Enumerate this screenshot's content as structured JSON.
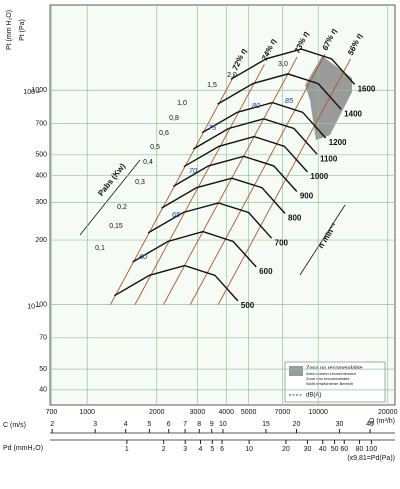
{
  "chart_data": {
    "type": "line",
    "x_label": "Q (m³/h)",
    "y_label": "Pt (Pa)",
    "y2_label": "Pt (mm H₂O)",
    "log_x": true,
    "log_y": true,
    "grid": true,
    "grid_color": "#8cc79a",
    "xlim": [
      690,
      21500
    ],
    "ylim": [
      34,
      2500
    ],
    "y2lim": [
      3.47,
      255
    ],
    "xticks": [
      700,
      1000,
      2000,
      3000,
      4000,
      5000,
      7000,
      10000,
      20000
    ],
    "yticks": [
      40,
      50,
      70,
      100,
      200,
      300,
      400,
      500,
      700,
      1000
    ],
    "y2ticks": [
      10,
      100
    ],
    "speed_axis_label": "n  min⁻¹",
    "speed_curves": [
      {
        "name": "500",
        "color": "#111111",
        "x": [
          1310,
          1860,
          2640,
          3570,
          4490
        ],
        "values": [
          110,
          137,
          152,
          137,
          104
        ]
      },
      {
        "name": "600",
        "color": "#111111",
        "x": [
          1572,
          2232,
          3168,
          4284,
          5388
        ],
        "values": [
          158,
          197,
          219,
          197,
          150
        ]
      },
      {
        "name": "700",
        "color": "#111111",
        "x": [
          1834,
          2604,
          3696,
          4998,
          6286
        ],
        "values": [
          216,
          269,
          298,
          269,
          204
        ]
      },
      {
        "name": "800",
        "color": "#111111",
        "x": [
          2096,
          2976,
          4224,
          5712,
          7184
        ],
        "values": [
          282,
          351,
          389,
          351,
          266
        ]
      },
      {
        "name": "900",
        "color": "#111111",
        "x": [
          2358,
          3348,
          4752,
          6426,
          8082
        ],
        "values": [
          356,
          444,
          492,
          444,
          337
        ]
      },
      {
        "name": "1000",
        "color": "#111111",
        "x": [
          2620,
          3720,
          5280,
          7140,
          8980
        ],
        "values": [
          440,
          548,
          608,
          548,
          416
        ]
      },
      {
        "name": "1100",
        "color": "#111111",
        "x": [
          2882,
          4092,
          5808,
          7854,
          9878
        ],
        "values": [
          532,
          663,
          736,
          663,
          503
        ]
      },
      {
        "name": "1200",
        "color": "#111111",
        "x": [
          3144,
          4464,
          6336,
          8568,
          10776
        ],
        "values": [
          634,
          789,
          876,
          789,
          599
        ]
      },
      {
        "name": "1400",
        "color": "#111111",
        "x": [
          3668,
          5208,
          7392,
          9996,
          12572
        ],
        "values": [
          862,
          1074,
          1192,
          1074,
          815
        ]
      },
      {
        "name": "1600",
        "color": "#111111",
        "x": [
          4192,
          5952,
          8448,
          11424,
          14368
        ],
        "values": [
          1126,
          1403,
          1556,
          1403,
          1065
        ]
      }
    ],
    "efficiency_lines": [
      {
        "name": "72% η",
        "color": "#b5562b",
        "x": [
          4360,
          1260
        ],
        "values": [
          1190,
          100
        ]
      },
      {
        "name": "74% η",
        "color": "#b5562b",
        "x": [
          5850,
          1610
        ],
        "values": [
          1320,
          100
        ]
      },
      {
        "name": "73% η",
        "color": "#b5562b",
        "x": [
          8100,
          2140
        ],
        "values": [
          1430,
          100
        ]
      },
      {
        "name": "67% η",
        "color": "#b5562b",
        "x": [
          10700,
          2790
        ],
        "values": [
          1475,
          100
        ]
      },
      {
        "name": "56% η",
        "color": "#b5562b",
        "x": [
          13800,
          3690
        ],
        "values": [
          1400,
          100
        ]
      }
    ],
    "power_title": "Pabs (Kw)",
    "power_labels": [
      "0,1",
      "0,15",
      "0,2",
      "0,3",
      "0,4",
      "0,5",
      "0,6",
      "0,8",
      "1,0",
      "1,5",
      "2,0",
      "3,0"
    ],
    "db_labels": [
      "60",
      "65",
      "70",
      "75",
      "80",
      "85"
    ],
    "legend": {
      "zone": "Zona no recomendable",
      "zone_notes": [
        "Area counter-recommended",
        "Zone non recommandée",
        "Nicht empfohlener Bereich"
      ],
      "db": "dB(A)"
    },
    "c_axis": {
      "label": "C (m/s)",
      "lim": [
        1.96,
        50.6
      ],
      "ticks": [
        2,
        3,
        4,
        5,
        6,
        7,
        8,
        9,
        10,
        15,
        20,
        30,
        40
      ]
    },
    "pd_axis": {
      "label": "Pd (mmH₂O)",
      "lim": [
        0.235,
        156
      ],
      "ticks": [
        1,
        2,
        3,
        4,
        5,
        6,
        10,
        20,
        30,
        40,
        50,
        60,
        80,
        100
      ],
      "note": "(x9,81=Pd(Pa))"
    }
  }
}
